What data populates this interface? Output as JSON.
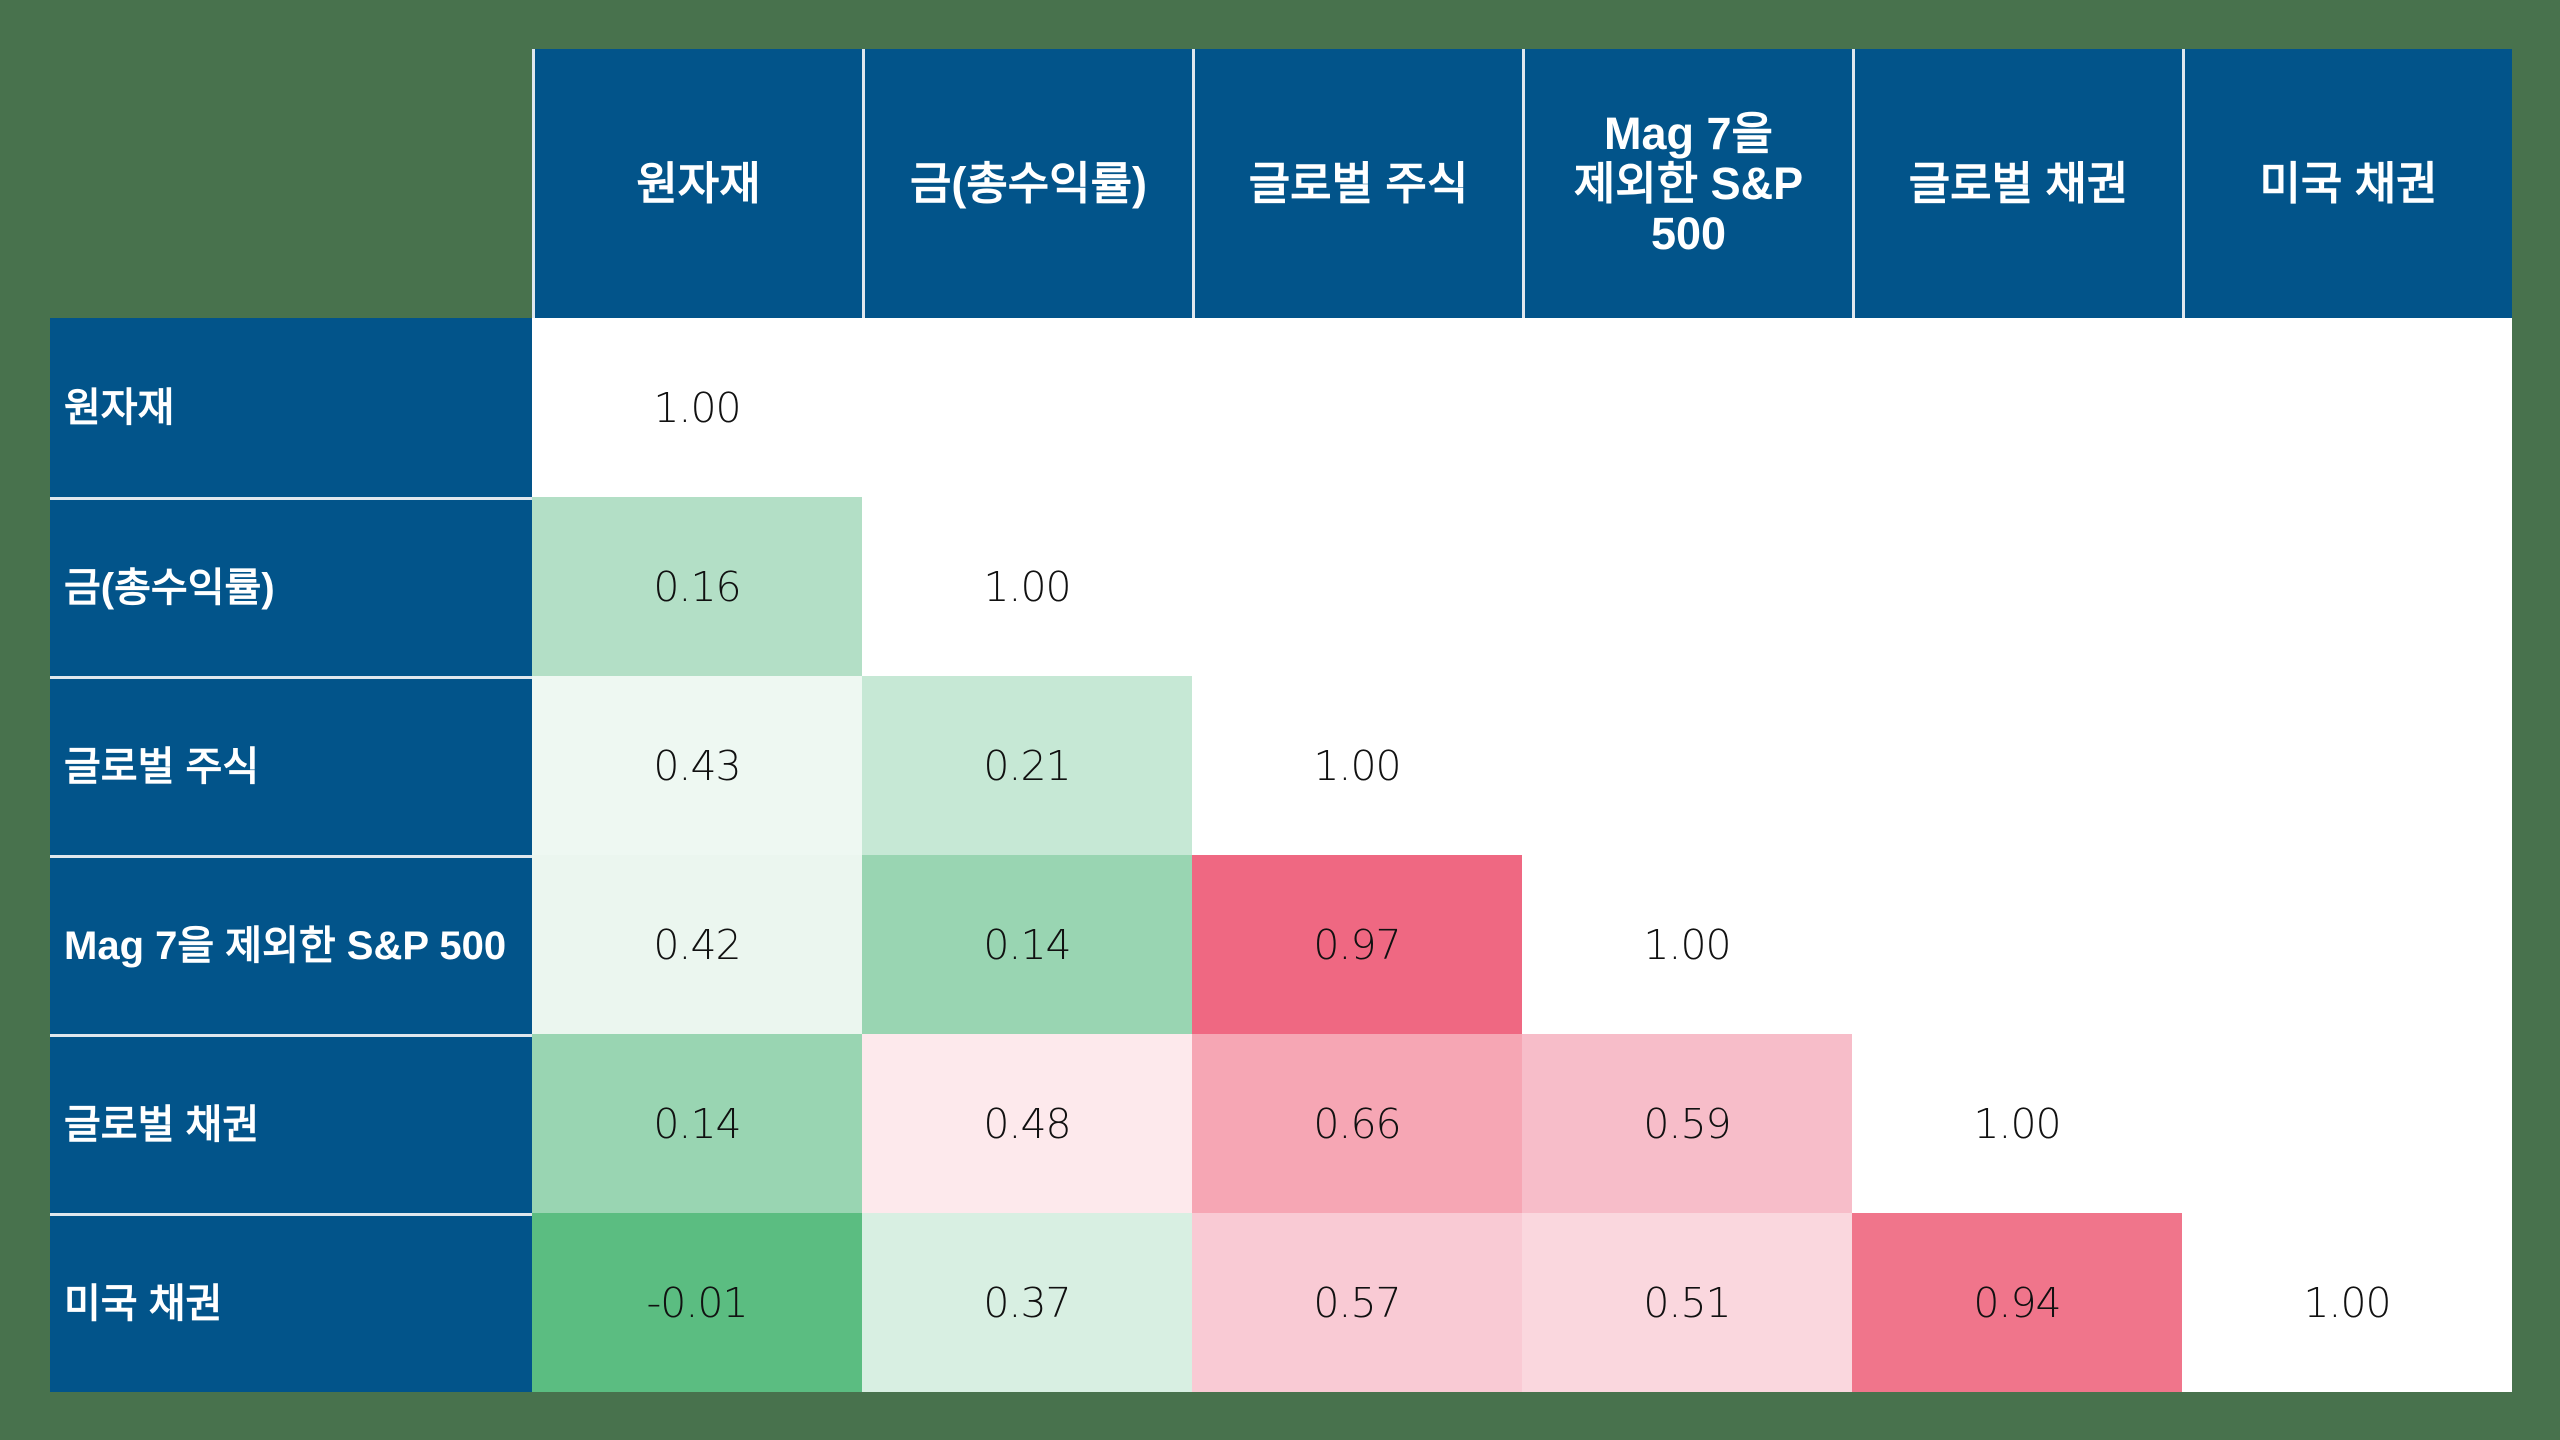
{
  "table": {
    "columns": [
      "원자재",
      "금(총수익률)",
      "글로벌 주식",
      "Mag 7을\n제외한 S&P\n500",
      "글로벌 채권",
      "미국 채권"
    ],
    "rows": [
      {
        "label": "원자재",
        "cells": [
          {
            "v": "1.00",
            "c": "#ffffff"
          },
          {
            "v": "",
            "c": "#ffffff"
          },
          {
            "v": "",
            "c": "#ffffff"
          },
          {
            "v": "",
            "c": "#ffffff"
          },
          {
            "v": "",
            "c": "#ffffff"
          },
          {
            "v": "",
            "c": "#ffffff"
          }
        ]
      },
      {
        "label": "금(총수익률)",
        "cells": [
          {
            "v": "0.16",
            "c": "#b3dfc6"
          },
          {
            "v": "1.00",
            "c": "#ffffff"
          },
          {
            "v": "",
            "c": "#ffffff"
          },
          {
            "v": "",
            "c": "#ffffff"
          },
          {
            "v": "",
            "c": "#ffffff"
          },
          {
            "v": "",
            "c": "#ffffff"
          }
        ]
      },
      {
        "label": "글로벌 주식",
        "cells": [
          {
            "v": "0.43",
            "c": "#eef8f2"
          },
          {
            "v": "0.21",
            "c": "#c6e8d5"
          },
          {
            "v": "1.00",
            "c": "#ffffff"
          },
          {
            "v": "",
            "c": "#ffffff"
          },
          {
            "v": "",
            "c": "#ffffff"
          },
          {
            "v": "",
            "c": "#ffffff"
          }
        ]
      },
      {
        "label": "Mag 7을 제외한 S&P 500",
        "cells": [
          {
            "v": "0.42",
            "c": "#ebf6ef"
          },
          {
            "v": "0.14",
            "c": "#99d5b2"
          },
          {
            "v": "0.97",
            "c": "#ef6882"
          },
          {
            "v": "1.00",
            "c": "#ffffff"
          },
          {
            "v": "",
            "c": "#ffffff"
          },
          {
            "v": "",
            "c": "#ffffff"
          }
        ]
      },
      {
        "label": "글로벌 채권",
        "cells": [
          {
            "v": "0.14",
            "c": "#99d5b2"
          },
          {
            "v": "0.48",
            "c": "#fde9ec"
          },
          {
            "v": "0.66",
            "c": "#f6a6b4"
          },
          {
            "v": "0.59",
            "c": "#f7bdc9"
          },
          {
            "v": "1.00",
            "c": "#ffffff"
          },
          {
            "v": "",
            "c": "#ffffff"
          }
        ]
      },
      {
        "label": "미국 채권",
        "cells": [
          {
            "v": "-0.01",
            "c": "#5bbd81"
          },
          {
            "v": "0.37",
            "c": "#d8efe2"
          },
          {
            "v": "0.57",
            "c": "#f9cad4"
          },
          {
            "v": "0.51",
            "c": "#fad7de"
          },
          {
            "v": "0.94",
            "c": "#f0758b"
          },
          {
            "v": "1.00",
            "c": "#ffffff"
          }
        ]
      }
    ]
  },
  "colors": {
    "header_bg": "#02548a",
    "page_bg": "#48724d",
    "positive_high": "#ef6882",
    "negative_low": "#5bbd81"
  },
  "chart_data": {
    "type": "heatmap",
    "title": "",
    "x": [
      "원자재",
      "금(총수익률)",
      "글로벌 주식",
      "Mag 7을 제외한 S&P 500",
      "글로벌 채권",
      "미국 채권"
    ],
    "y": [
      "원자재",
      "금(총수익률)",
      "글로벌 주식",
      "Mag 7을 제외한 S&P 500",
      "글로벌 채권",
      "미국 채권"
    ],
    "values": [
      [
        1.0,
        null,
        null,
        null,
        null,
        null
      ],
      [
        0.16,
        1.0,
        null,
        null,
        null,
        null
      ],
      [
        0.43,
        0.21,
        1.0,
        null,
        null,
        null
      ],
      [
        0.42,
        0.14,
        0.97,
        1.0,
        null,
        null
      ],
      [
        0.14,
        0.48,
        0.66,
        0.59,
        1.0,
        null
      ],
      [
        -0.01,
        0.37,
        0.57,
        0.51,
        0.94,
        1.0
      ]
    ],
    "colorscale": "green (low correlation) to pink/red (high correlation); diagonal white",
    "legend": "none"
  }
}
